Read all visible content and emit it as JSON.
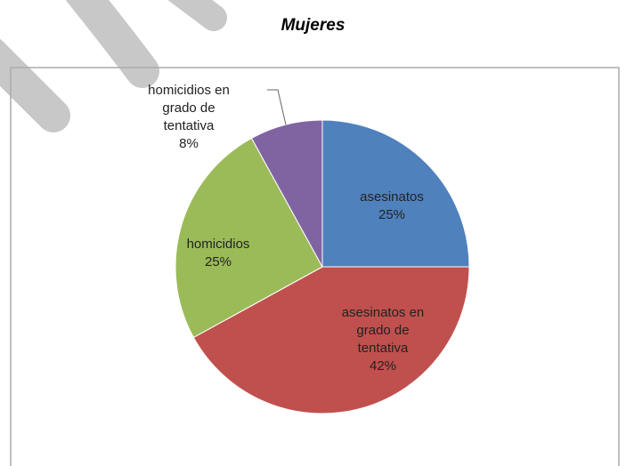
{
  "chart_data": {
    "type": "pie",
    "title": "Mujeres",
    "categories": [
      "asesinatos",
      "asesinatos en grado de tentativa",
      "homicidios",
      "homicidios en grado de tentativa"
    ],
    "values": [
      25,
      42,
      25,
      8
    ],
    "value_labels": [
      "25%",
      "42%",
      "25%",
      "8%"
    ],
    "colors": [
      "#4f81bd",
      "#c0504d",
      "#9bbb59",
      "#8064a2"
    ]
  }
}
